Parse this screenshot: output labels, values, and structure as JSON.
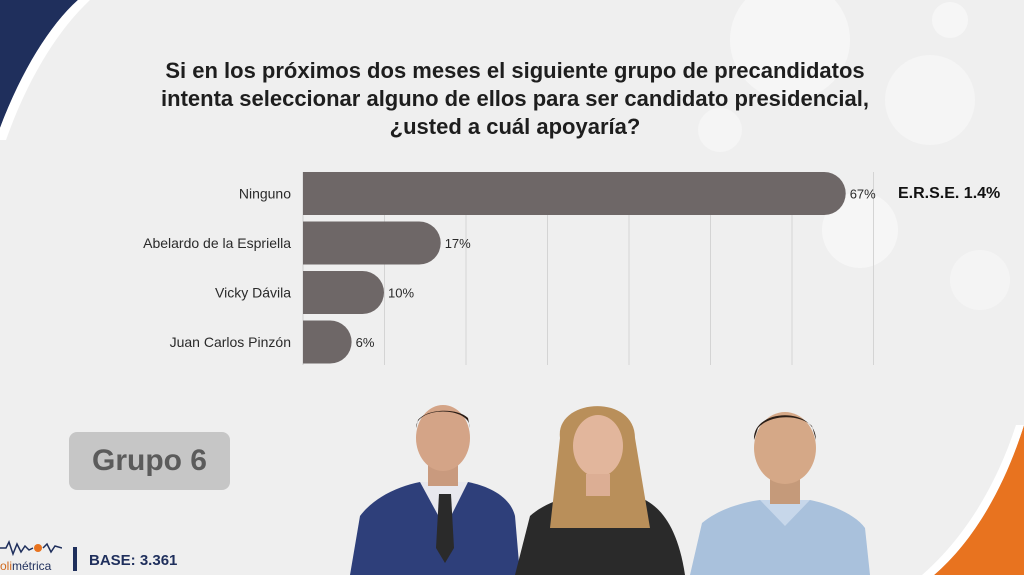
{
  "question": {
    "lines": [
      "Si en los próximos dos meses el siguiente grupo de precandidatos",
      "intenta seleccionar alguno de ellos para ser candidato presidencial,",
      "¿usted a cuál apoyaría?"
    ]
  },
  "chart_data": {
    "type": "bar",
    "orientation": "horizontal",
    "categories": [
      "Ninguno",
      "Abelardo de la Espriella",
      "Vicky Dávila",
      "Juan Carlos Pinzón"
    ],
    "values": [
      67,
      17,
      10,
      6
    ],
    "value_labels": [
      "67%",
      "17%",
      "10%",
      "6%"
    ],
    "unit": "%",
    "xlim": [
      0,
      70
    ],
    "grid": true,
    "bar_color": "#6e6767"
  },
  "erse": "E.R.S.E. 1.4%",
  "group_label": "Grupo 6",
  "logo": {
    "prefix": "oli",
    "suffix": "métrica"
  },
  "base": "BASE: 3.361",
  "colors": {
    "navy": "#1f2f5c",
    "orange": "#e8731f",
    "bar": "#6e6767",
    "badge": "#c6c6c6"
  }
}
